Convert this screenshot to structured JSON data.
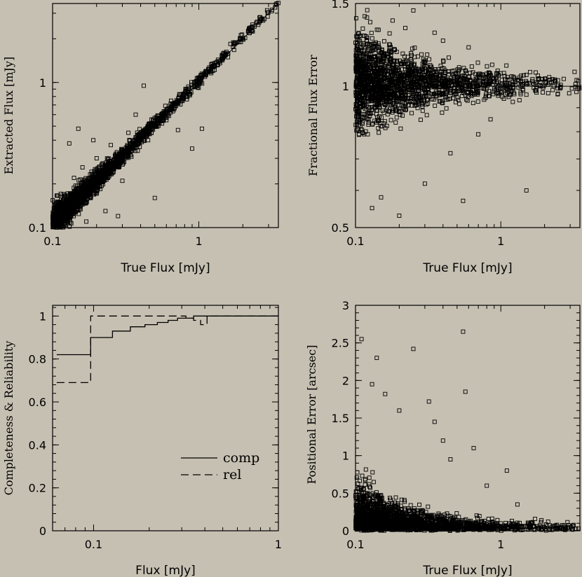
{
  "chart_data": [
    {
      "id": "p1",
      "type": "scatter",
      "xlabel": "True Flux [mJy]",
      "ylabel": "Extracted Flux [mJy]",
      "xscale": "log",
      "yscale": "log",
      "xlim": [
        0.1,
        3.5
      ],
      "ylim": [
        0.1,
        3.5
      ],
      "xticks": [
        {
          "v": 0.1,
          "label": "0.1"
        },
        {
          "v": 1,
          "label": "1"
        }
      ],
      "yticks": [
        {
          "v": 0.1,
          "label": "0.1"
        },
        {
          "v": 1,
          "label": "1"
        }
      ],
      "reference_line": "y=x",
      "outliers": [
        [
          0.13,
          0.38
        ],
        [
          0.15,
          0.48
        ],
        [
          0.14,
          0.22
        ],
        [
          0.23,
          0.13
        ],
        [
          0.42,
          0.95
        ],
        [
          0.72,
          0.47
        ],
        [
          0.9,
          0.35
        ],
        [
          1.05,
          0.48
        ],
        [
          0.5,
          0.16
        ],
        [
          0.37,
          0.6
        ],
        [
          0.28,
          0.12
        ],
        [
          0.2,
          0.3
        ],
        [
          0.6,
          0.55
        ],
        [
          0.33,
          0.45
        ],
        [
          0.17,
          0.11
        ],
        [
          0.45,
          0.4
        ],
        [
          0.25,
          0.37
        ],
        [
          0.16,
          0.26
        ],
        [
          0.19,
          0.4
        ],
        [
          0.3,
          0.21
        ]
      ]
    },
    {
      "id": "p2",
      "type": "scatter",
      "xlabel": "True Flux [mJy]",
      "ylabel": "Fractional Flux Error",
      "xscale": "log",
      "yscale": "log",
      "xlim": [
        0.1,
        3.5
      ],
      "ylim": [
        0.5,
        1.5
      ],
      "xticks": [
        {
          "v": 0.1,
          "label": "0.1"
        },
        {
          "v": 1,
          "label": "1"
        }
      ],
      "yticks": [
        {
          "v": 0.5,
          "label": "0.5"
        },
        {
          "v": 1,
          "label": "1"
        },
        {
          "v": 1.5,
          "label": "1.5"
        }
      ],
      "reference_line": "y=1",
      "outliers": [
        [
          0.35,
          1.3
        ],
        [
          0.25,
          1.45
        ],
        [
          0.45,
          0.72
        ],
        [
          0.7,
          0.79
        ],
        [
          1.5,
          0.6
        ],
        [
          0.55,
          0.57
        ],
        [
          0.2,
          0.53
        ],
        [
          0.15,
          0.58
        ],
        [
          0.12,
          1.4
        ],
        [
          0.18,
          1.38
        ],
        [
          0.4,
          1.25
        ],
        [
          0.3,
          0.62
        ],
        [
          0.6,
          1.21
        ],
        [
          0.85,
          0.85
        ],
        [
          0.22,
          1.33
        ],
        [
          0.13,
          0.55
        ]
      ]
    },
    {
      "id": "p3",
      "type": "line",
      "xlabel": "Flux [mJy]",
      "ylabel": "Completeness & Reliability",
      "xscale": "log",
      "xlim": [
        0.06,
        1.0
      ],
      "ylim": [
        0,
        1.05
      ],
      "xticks": [
        {
          "v": 0.1,
          "label": "0.1"
        },
        {
          "v": 1,
          "label": "1"
        }
      ],
      "yticks": [
        {
          "v": 0,
          "label": "0"
        },
        {
          "v": 0.2,
          "label": "0.2"
        },
        {
          "v": 0.4,
          "label": "0.4"
        },
        {
          "v": 0.6,
          "label": "0.6"
        },
        {
          "v": 0.8,
          "label": "0.8"
        },
        {
          "v": 1,
          "label": "1"
        }
      ],
      "legend_position": "bottom-right",
      "series": [
        {
          "name": "comp",
          "style": "solid",
          "x": [
            0.0632,
            0.0964,
            0.1265,
            0.1581,
            0.1897,
            0.2213,
            0.253,
            0.2846,
            0.3162,
            0.3478,
            0.3794,
            0.4111,
            0.4427,
            0.4743,
            1.0
          ],
          "y": [
            0.82,
            0.9,
            0.93,
            0.95,
            0.96,
            0.97,
            0.98,
            0.99,
            0.99,
            1.0,
            1.0,
            1.0,
            1.0,
            1.0,
            1.0
          ]
        },
        {
          "name": "rel",
          "style": "dashed",
          "x": [
            0.0632,
            0.0964,
            0.1265,
            0.1581,
            0.1897,
            0.2213,
            0.253,
            0.2846,
            0.3162,
            0.3478,
            0.3794,
            0.4111,
            0.4427,
            0.4743,
            1.0
          ],
          "y": [
            0.69,
            1.0,
            1.0,
            1.0,
            1.0,
            1.0,
            1.0,
            1.0,
            0.99,
            0.98,
            0.96,
            1.0,
            1.0,
            1.0,
            1.0
          ]
        }
      ]
    },
    {
      "id": "p4",
      "type": "scatter",
      "xlabel": "True Flux [mJy]",
      "ylabel": "Positional Error [arcsec]",
      "xscale": "log",
      "xlim": [
        0.1,
        3.5
      ],
      "ylim": [
        0,
        3
      ],
      "xticks": [
        {
          "v": 0.1,
          "label": "0.1"
        },
        {
          "v": 1,
          "label": "1"
        }
      ],
      "yticks": [
        {
          "v": 0,
          "label": "0"
        },
        {
          "v": 0.5,
          "label": "0.5"
        },
        {
          "v": 1,
          "label": "1"
        },
        {
          "v": 1.5,
          "label": "1.5"
        },
        {
          "v": 2,
          "label": "2"
        },
        {
          "v": 2.5,
          "label": "2.5"
        },
        {
          "v": 3,
          "label": "3"
        }
      ],
      "outliers": [
        [
          0.55,
          2.65
        ],
        [
          0.57,
          1.85
        ],
        [
          0.25,
          2.42
        ],
        [
          0.11,
          2.55
        ],
        [
          0.14,
          2.3
        ],
        [
          0.32,
          1.72
        ],
        [
          0.65,
          1.1
        ],
        [
          1.1,
          0.8
        ],
        [
          0.4,
          1.2
        ],
        [
          0.45,
          0.95
        ],
        [
          0.2,
          1.6
        ],
        [
          0.8,
          0.6
        ],
        [
          1.3,
          0.35
        ],
        [
          0.35,
          1.45
        ],
        [
          0.13,
          1.95
        ],
        [
          0.16,
          1.82
        ]
      ]
    }
  ]
}
